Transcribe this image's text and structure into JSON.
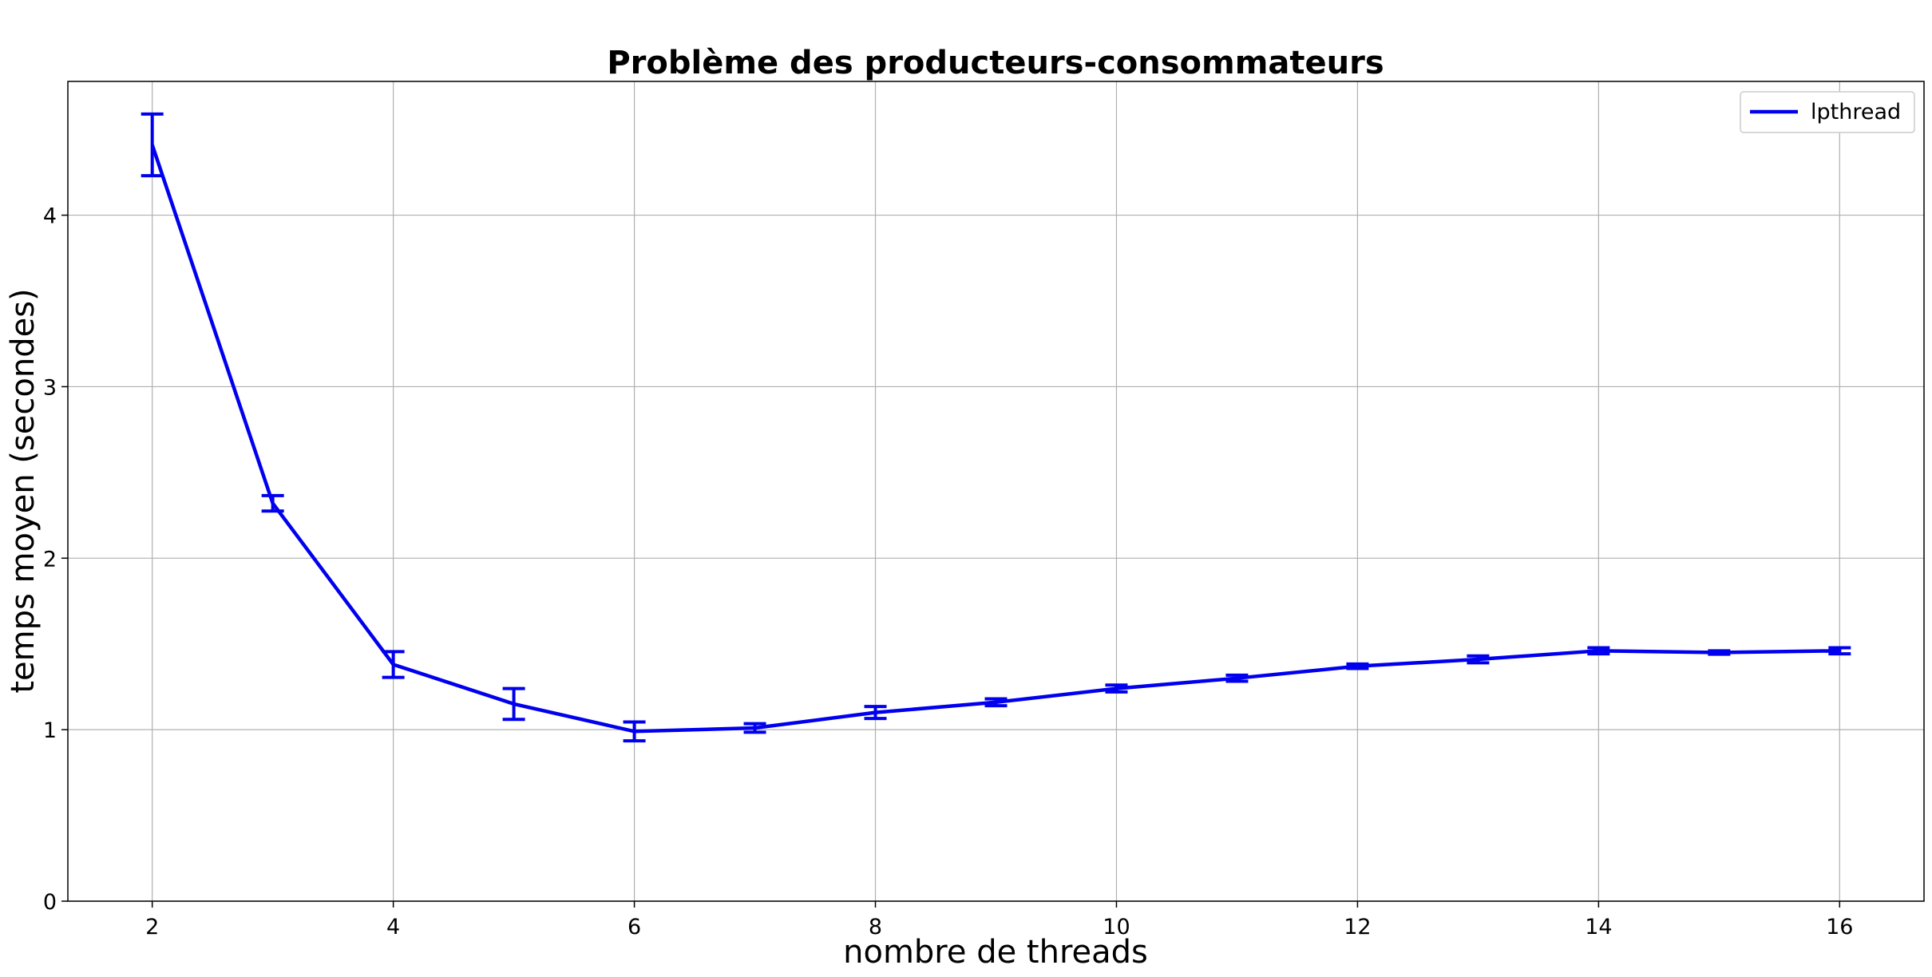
{
  "chart_data": {
    "type": "line",
    "title": "Problème des producteurs-consommateurs",
    "xlabel": "nombre de threads",
    "ylabel": "temps moyen (secondes)",
    "xlim": [
      1.3,
      16.7
    ],
    "ylim": [
      0,
      4.78
    ],
    "xticks": [
      "2",
      "4",
      "6",
      "8",
      "10",
      "12",
      "14",
      "16"
    ],
    "yticks": [
      "0",
      "1",
      "2",
      "3",
      "4"
    ],
    "grid": true,
    "legend_position": "top-right",
    "series": [
      {
        "name": "lpthread",
        "color": "#0000ee",
        "x": [
          2,
          3,
          4,
          5,
          6,
          7,
          8,
          9,
          10,
          11,
          12,
          13,
          14,
          15,
          16
        ],
        "y": [
          4.41,
          2.32,
          1.38,
          1.15,
          0.99,
          1.01,
          1.1,
          1.16,
          1.24,
          1.3,
          1.37,
          1.41,
          1.46,
          1.45,
          1.46
        ],
        "err": [
          0.18,
          0.045,
          0.075,
          0.09,
          0.055,
          0.025,
          0.035,
          0.02,
          0.02,
          0.018,
          0.013,
          0.02,
          0.018,
          0.01,
          0.018
        ]
      }
    ]
  }
}
